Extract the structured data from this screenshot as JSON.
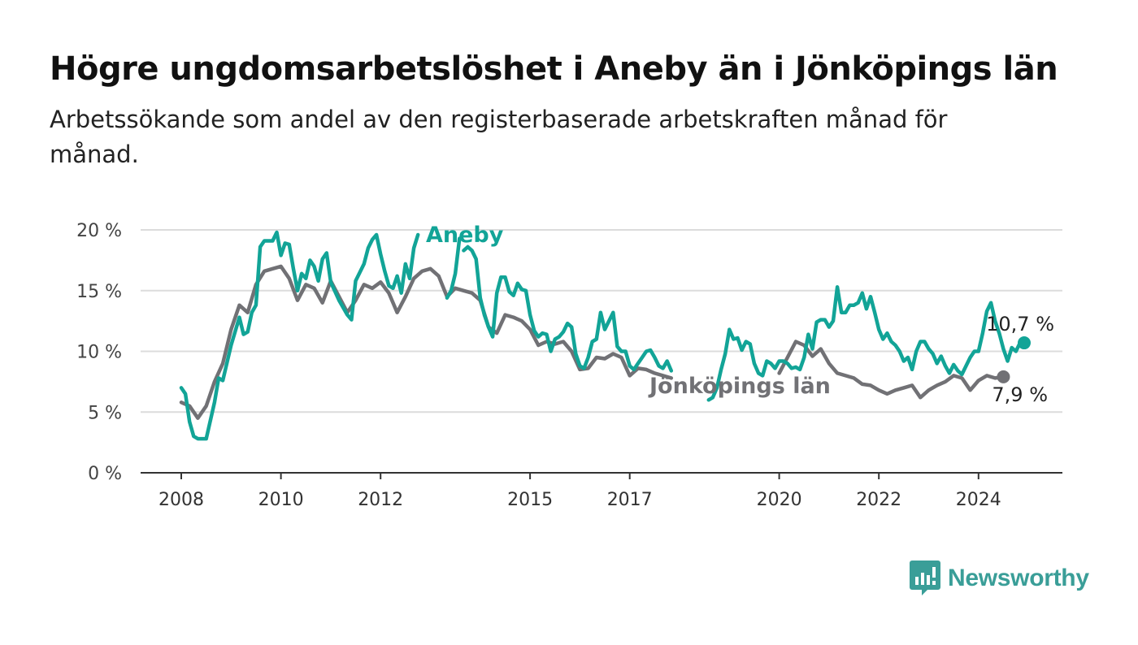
{
  "title": "Högre ungdomsarbetslöshet i Aneby än i Jönköpings län",
  "subtitle": "Arbetssökande som andel av den registerbaserade arbetskraften månad för månad.",
  "logo_text": "Newsworthy",
  "colors": {
    "aneby": "#12a497",
    "lan": "#717175",
    "grid": "#dcdcdc",
    "axis": "#333333"
  },
  "chart_data": {
    "type": "line",
    "x_start": "2008-01",
    "x_end": "2024-12",
    "ylim": [
      0,
      20
    ],
    "grid": true,
    "y_ticks": [
      0,
      5,
      10,
      15,
      20
    ],
    "y_tick_labels": [
      "0 %",
      "5 %",
      "10 %",
      "15 %",
      "20 %"
    ],
    "x_ticks": [
      2008,
      2010,
      2012,
      2015,
      2017,
      2020,
      2022,
      2024
    ],
    "x_tick_labels": [
      "2008",
      "2010",
      "2012",
      "2015",
      "2017",
      "2020",
      "2022",
      "2024"
    ],
    "series": [
      {
        "name": "Jönköpings län",
        "color": "#717175",
        "end_label": "7,9 %",
        "end_value": 7.9,
        "points": [
          [
            "2008-01",
            5.8
          ],
          [
            "2008-03",
            5.5
          ],
          [
            "2008-05",
            4.5
          ],
          [
            "2008-07",
            5.5
          ],
          [
            "2008-09",
            7.5
          ],
          [
            "2008-11",
            9.0
          ],
          [
            "2009-01",
            11.8
          ],
          [
            "2009-03",
            13.8
          ],
          [
            "2009-05",
            13.2
          ],
          [
            "2009-07",
            15.5
          ],
          [
            "2009-09",
            16.6
          ],
          [
            "2009-11",
            16.8
          ],
          [
            "2010-01",
            17.0
          ],
          [
            "2010-03",
            16.0
          ],
          [
            "2010-05",
            14.2
          ],
          [
            "2010-07",
            15.5
          ],
          [
            "2010-09",
            15.2
          ],
          [
            "2010-11",
            14.0
          ],
          [
            "2011-01",
            15.8
          ],
          [
            "2011-03",
            14.5
          ],
          [
            "2011-05",
            13.2
          ],
          [
            "2011-07",
            14.2
          ],
          [
            "2011-09",
            15.5
          ],
          [
            "2011-11",
            15.2
          ],
          [
            "2012-01",
            15.7
          ],
          [
            "2012-03",
            14.8
          ],
          [
            "2012-05",
            13.2
          ],
          [
            "2012-07",
            14.5
          ],
          [
            "2012-09",
            16.0
          ],
          [
            "2012-11",
            16.6
          ],
          [
            "2013-01",
            16.8
          ],
          [
            "2013-03",
            16.2
          ],
          [
            "2013-05",
            14.5
          ],
          [
            "2013-07",
            15.2
          ],
          [
            "2013-09",
            15.0
          ],
          [
            "2013-11",
            14.8
          ],
          [
            "2014-01",
            14.2
          ],
          [
            "2014-03",
            12.0
          ],
          [
            "2014-05",
            11.5
          ],
          [
            "2014-07",
            13.0
          ],
          [
            "2014-09",
            12.8
          ],
          [
            "2014-11",
            12.5
          ],
          [
            "2015-01",
            11.8
          ],
          [
            "2015-03",
            10.5
          ],
          [
            "2015-05",
            10.8
          ],
          [
            "2015-07",
            10.6
          ],
          [
            "2015-09",
            10.8
          ],
          [
            "2015-11",
            10.0
          ],
          [
            "2016-01",
            8.5
          ],
          [
            "2016-03",
            8.6
          ],
          [
            "2016-05",
            9.5
          ],
          [
            "2016-07",
            9.4
          ],
          [
            "2016-09",
            9.8
          ],
          [
            "2016-11",
            9.5
          ],
          [
            "2017-01",
            8.0
          ],
          [
            "2017-03",
            8.6
          ],
          [
            "2017-05",
            8.5
          ],
          [
            "2017-07",
            8.2
          ],
          [
            "2017-09",
            8.0
          ],
          [
            "2017-11",
            7.8
          ]
        ],
        "points_2": [
          [
            "2020-01",
            8.2
          ],
          [
            "2020-03",
            9.5
          ],
          [
            "2020-05",
            10.8
          ],
          [
            "2020-07",
            10.5
          ],
          [
            "2020-09",
            9.6
          ],
          [
            "2020-11",
            10.2
          ],
          [
            "2021-01",
            9.0
          ],
          [
            "2021-03",
            8.2
          ],
          [
            "2021-05",
            8.0
          ],
          [
            "2021-07",
            7.8
          ],
          [
            "2021-09",
            7.3
          ],
          [
            "2021-11",
            7.2
          ],
          [
            "2022-01",
            6.8
          ],
          [
            "2022-03",
            6.5
          ],
          [
            "2022-05",
            6.8
          ],
          [
            "2022-07",
            7.0
          ],
          [
            "2022-09",
            7.2
          ],
          [
            "2022-11",
            6.2
          ],
          [
            "2023-01",
            6.8
          ],
          [
            "2023-03",
            7.2
          ],
          [
            "2023-05",
            7.5
          ],
          [
            "2023-07",
            8.0
          ],
          [
            "2023-09",
            7.8
          ],
          [
            "2023-11",
            6.8
          ],
          [
            "2024-01",
            7.6
          ],
          [
            "2024-03",
            8.0
          ],
          [
            "2024-05",
            7.8
          ],
          [
            "2024-07",
            7.9
          ]
        ]
      },
      {
        "name": "Aneby",
        "color": "#12a497",
        "end_label": "10,7 %",
        "end_value": 10.7,
        "points": [
          [
            "2008-01",
            7.0
          ],
          [
            "2008-02",
            6.5
          ],
          [
            "2008-03",
            4.2
          ],
          [
            "2008-04",
            3.0
          ],
          [
            "2008-05",
            2.8
          ],
          [
            "2008-07",
            2.8
          ],
          [
            "2008-09",
            5.8
          ],
          [
            "2008-10",
            7.8
          ],
          [
            "2008-11",
            7.6
          ],
          [
            "2009-01",
            10.5
          ],
          [
            "2009-03",
            12.8
          ],
          [
            "2009-04",
            11.4
          ],
          [
            "2009-05",
            11.6
          ],
          [
            "2009-06",
            13.2
          ],
          [
            "2009-07",
            13.8
          ],
          [
            "2009-08",
            18.6
          ],
          [
            "2009-09",
            19.1
          ],
          [
            "2009-10",
            19.1
          ],
          [
            "2009-11",
            19.1
          ],
          [
            "2009-12",
            19.8
          ],
          [
            "2010-01",
            17.9
          ],
          [
            "2010-02",
            18.9
          ],
          [
            "2010-03",
            18.8
          ],
          [
            "2010-04",
            16.8
          ],
          [
            "2010-05",
            15.0
          ],
          [
            "2010-06",
            16.4
          ],
          [
            "2010-07",
            16.0
          ],
          [
            "2010-08",
            17.5
          ],
          [
            "2010-09",
            17.0
          ],
          [
            "2010-10",
            15.8
          ],
          [
            "2010-11",
            17.6
          ],
          [
            "2010-12",
            18.1
          ],
          [
            "2011-01",
            15.7
          ],
          [
            "2011-03",
            14.2
          ],
          [
            "2011-05",
            13.0
          ],
          [
            "2011-06",
            12.6
          ],
          [
            "2011-07",
            15.8
          ],
          [
            "2011-08",
            16.5
          ],
          [
            "2011-09",
            17.2
          ],
          [
            "2011-10",
            18.5
          ],
          [
            "2011-11",
            19.2
          ],
          [
            "2011-12",
            19.6
          ],
          [
            "2012-01",
            18.0
          ],
          [
            "2012-02",
            16.6
          ],
          [
            "2012-03",
            15.4
          ],
          [
            "2012-04",
            15.2
          ],
          [
            "2012-05",
            16.2
          ],
          [
            "2012-06",
            14.8
          ],
          [
            "2012-07",
            17.2
          ],
          [
            "2012-08",
            16.0
          ],
          [
            "2012-09",
            18.5
          ],
          [
            "2012-10",
            19.6
          ]
        ],
        "points_2": [
          [
            "2013-05",
            14.4
          ],
          [
            "2013-06",
            15.0
          ],
          [
            "2013-07",
            16.4
          ],
          [
            "2013-08",
            19.3
          ]
        ],
        "points_3": [
          [
            "2013-09",
            18.3
          ],
          [
            "2013-10",
            18.6
          ],
          [
            "2013-11",
            18.3
          ],
          [
            "2013-12",
            17.6
          ],
          [
            "2014-01",
            14.4
          ],
          [
            "2014-02",
            13.0
          ],
          [
            "2014-03",
            12.0
          ],
          [
            "2014-04",
            11.2
          ],
          [
            "2014-05",
            14.8
          ],
          [
            "2014-06",
            16.1
          ],
          [
            "2014-07",
            16.1
          ],
          [
            "2014-08",
            14.9
          ],
          [
            "2014-09",
            14.6
          ],
          [
            "2014-10",
            15.6
          ],
          [
            "2014-11",
            15.1
          ],
          [
            "2014-12",
            15.0
          ],
          [
            "2015-01",
            13.0
          ],
          [
            "2015-02",
            11.7
          ],
          [
            "2015-03",
            11.2
          ],
          [
            "2015-04",
            11.5
          ],
          [
            "2015-05",
            11.4
          ],
          [
            "2015-06",
            10.0
          ],
          [
            "2015-07",
            11.0
          ],
          [
            "2015-08",
            11.2
          ],
          [
            "2015-09",
            11.6
          ],
          [
            "2015-10",
            12.3
          ],
          [
            "2015-11",
            12.0
          ],
          [
            "2015-12",
            9.8
          ],
          [
            "2016-01",
            8.8
          ],
          [
            "2016-02",
            8.6
          ],
          [
            "2016-03",
            9.5
          ],
          [
            "2016-04",
            10.8
          ],
          [
            "2016-05",
            11.0
          ],
          [
            "2016-06",
            13.2
          ],
          [
            "2016-07",
            11.8
          ],
          [
            "2016-08",
            12.5
          ],
          [
            "2016-09",
            13.2
          ],
          [
            "2016-10",
            10.4
          ],
          [
            "2016-11",
            10.0
          ],
          [
            "2016-12",
            10.0
          ],
          [
            "2017-01",
            8.8
          ],
          [
            "2017-02",
            8.5
          ],
          [
            "2017-03",
            9.0
          ],
          [
            "2017-04",
            9.5
          ],
          [
            "2017-05",
            10.0
          ],
          [
            "2017-06",
            10.1
          ],
          [
            "2017-07",
            9.5
          ],
          [
            "2017-08",
            8.8
          ],
          [
            "2017-09",
            8.6
          ],
          [
            "2017-10",
            9.2
          ],
          [
            "2017-11",
            8.4
          ]
        ],
        "points_4": [
          [
            "2018-08",
            6.0
          ],
          [
            "2018-09",
            6.2
          ],
          [
            "2018-10",
            7.0
          ],
          [
            "2018-11",
            8.5
          ],
          [
            "2018-12",
            9.8
          ],
          [
            "2019-01",
            11.8
          ],
          [
            "2019-02",
            11.0
          ],
          [
            "2019-03",
            11.1
          ],
          [
            "2019-04",
            10.1
          ],
          [
            "2019-05",
            10.8
          ],
          [
            "2019-06",
            10.6
          ],
          [
            "2019-07",
            9.0
          ],
          [
            "2019-08",
            8.2
          ],
          [
            "2019-09",
            8.0
          ],
          [
            "2019-10",
            9.2
          ],
          [
            "2019-11",
            9.0
          ],
          [
            "2019-12",
            8.6
          ],
          [
            "2020-01",
            9.2
          ],
          [
            "2020-02",
            9.2
          ],
          [
            "2020-03",
            9.0
          ],
          [
            "2020-04",
            8.6
          ],
          [
            "2020-05",
            8.7
          ],
          [
            "2020-06",
            8.5
          ],
          [
            "2020-07",
            9.5
          ],
          [
            "2020-08",
            11.4
          ],
          [
            "2020-09",
            10.2
          ],
          [
            "2020-10",
            12.4
          ],
          [
            "2020-11",
            12.6
          ],
          [
            "2020-12",
            12.6
          ],
          [
            "2021-01",
            12.0
          ],
          [
            "2021-02",
            12.5
          ],
          [
            "2021-03",
            15.3
          ],
          [
            "2021-04",
            13.2
          ],
          [
            "2021-05",
            13.2
          ],
          [
            "2021-06",
            13.8
          ],
          [
            "2021-07",
            13.8
          ],
          [
            "2021-08",
            14.0
          ],
          [
            "2021-09",
            14.8
          ],
          [
            "2021-10",
            13.5
          ],
          [
            "2021-11",
            14.5
          ],
          [
            "2021-12",
            13.2
          ],
          [
            "2022-01",
            11.8
          ],
          [
            "2022-02",
            11.0
          ],
          [
            "2022-03",
            11.5
          ],
          [
            "2022-04",
            10.8
          ],
          [
            "2022-05",
            10.5
          ],
          [
            "2022-06",
            10.0
          ],
          [
            "2022-07",
            9.2
          ],
          [
            "2022-08",
            9.5
          ],
          [
            "2022-09",
            8.5
          ],
          [
            "2022-10",
            10.0
          ],
          [
            "2022-11",
            10.8
          ],
          [
            "2022-12",
            10.8
          ],
          [
            "2023-01",
            10.2
          ],
          [
            "2023-02",
            9.8
          ],
          [
            "2023-03",
            9.0
          ],
          [
            "2023-04",
            9.6
          ],
          [
            "2023-05",
            8.8
          ],
          [
            "2023-06",
            8.2
          ],
          [
            "2023-07",
            8.9
          ],
          [
            "2023-08",
            8.4
          ],
          [
            "2023-09",
            8.1
          ],
          [
            "2023-10",
            8.8
          ],
          [
            "2023-11",
            9.5
          ],
          [
            "2023-12",
            10.0
          ],
          [
            "2024-01",
            10.0
          ],
          [
            "2024-02",
            11.5
          ],
          [
            "2024-03",
            13.3
          ],
          [
            "2024-04",
            14.0
          ],
          [
            "2024-05",
            12.5
          ],
          [
            "2024-06",
            11.5
          ],
          [
            "2024-07",
            10.2
          ],
          [
            "2024-08",
            9.2
          ],
          [
            "2024-09",
            10.3
          ],
          [
            "2024-10",
            10.0
          ],
          [
            "2024-11",
            10.7
          ],
          [
            "2024-12",
            10.7
          ]
        ]
      }
    ],
    "labels": {
      "aneby": "Aneby",
      "lan": "Jönköpings län"
    }
  }
}
